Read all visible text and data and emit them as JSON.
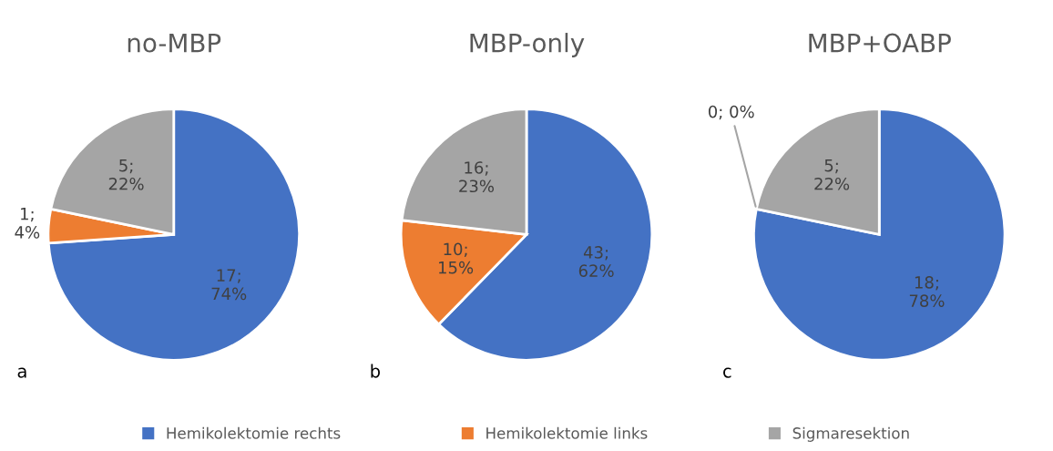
{
  "chart_data": [
    {
      "type": "pie",
      "title": "no-MBP",
      "categories": [
        "Hemikolektomie rechts",
        "Hemikolektomie links",
        "Sigmaresektion"
      ],
      "values": [
        17,
        1,
        5
      ],
      "colors": [
        "#4472c4",
        "#ed7d31",
        "#a5a5a5"
      ],
      "value_labels": [
        "17;\n74%",
        "1;\n4%",
        "5;\n22%"
      ],
      "annotations": [
        "a"
      ],
      "legend": "bottom"
    },
    {
      "type": "pie",
      "title": "MBP-only",
      "values": [
        43,
        10,
        16
      ],
      "colors": [
        "#4472c4",
        "#ed7d31",
        "#a5a5a5"
      ],
      "value_labels": [
        "43;\n62%",
        "10;\n15%",
        "16;\n23%"
      ],
      "annotations": [
        "b"
      ]
    },
    {
      "type": "pie",
      "title": "MBP+OABP",
      "values": [
        18,
        0,
        5
      ],
      "colors": [
        "#4472c4",
        "#ed7d31",
        "#a5a5a5"
      ],
      "value_labels": [
        "18;\n78%",
        "0; 0%",
        "5;\n22%"
      ],
      "annotations": [
        "c"
      ]
    }
  ]
}
